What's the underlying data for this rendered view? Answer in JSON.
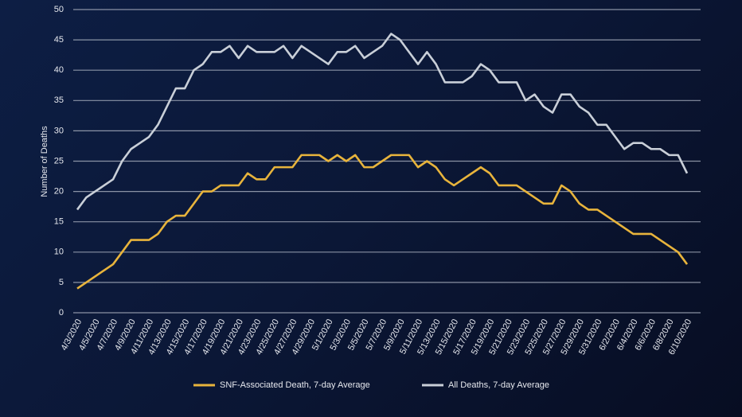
{
  "chart_data": {
    "type": "line",
    "y_label": "Number of Deaths",
    "categories": [
      "4/3/2020",
      null,
      "4/5/2020",
      null,
      "4/7/2020",
      null,
      "4/9/2020",
      null,
      "4/11/2020",
      null,
      "4/13/2020",
      null,
      "4/15/2020",
      null,
      "4/17/2020",
      null,
      "4/19/2020",
      null,
      "4/21/2020",
      null,
      "4/23/2020",
      null,
      "4/25/2020",
      null,
      "4/27/2020",
      null,
      "4/29/2020",
      null,
      "5/1/2020",
      null,
      "5/3/2020",
      null,
      "5/5/2020",
      null,
      "5/7/2020",
      null,
      "5/9/2020",
      null,
      "5/11/2020",
      null,
      "5/13/2020",
      null,
      "5/15/2020",
      null,
      "5/17/2020",
      null,
      "5/19/2020",
      null,
      "5/21/2020",
      null,
      "5/23/2020",
      null,
      "5/25/2020",
      null,
      "5/27/2020",
      null,
      "5/29/2020",
      null,
      "5/31/2020",
      null,
      "6/2/2020",
      null,
      "6/4/2020",
      null,
      "6/6/2020",
      null,
      "6/8/2020",
      null,
      "6/10/2020"
    ],
    "series": [
      {
        "name": "SNF-Associated Death, 7-day Average",
        "color": "#e8b43c",
        "values": [
          4,
          5,
          6,
          7,
          8,
          10,
          12,
          12,
          12,
          13,
          15,
          16,
          16,
          18,
          20,
          20,
          21,
          21,
          21,
          23,
          22,
          22,
          24,
          24,
          24,
          26,
          26,
          26,
          25,
          26,
          25,
          26,
          24,
          24,
          25,
          26,
          26,
          26,
          24,
          25,
          24,
          22,
          21,
          22,
          23,
          24,
          23,
          21,
          21,
          21,
          20,
          19,
          18,
          18,
          21,
          20,
          18,
          17,
          17,
          16,
          15,
          14,
          13,
          13,
          13,
          12,
          11,
          10,
          8
        ]
      },
      {
        "name": "All Deaths, 7-day Average",
        "color": "#c9cfd8",
        "values": [
          17,
          19,
          20,
          21,
          22,
          25,
          27,
          28,
          29,
          31,
          34,
          37,
          37,
          40,
          41,
          43,
          43,
          44,
          42,
          44,
          43,
          43,
          43,
          44,
          42,
          44,
          43,
          42,
          41,
          43,
          43,
          44,
          42,
          43,
          44,
          46,
          45,
          43,
          41,
          43,
          41,
          38,
          38,
          38,
          39,
          41,
          40,
          38,
          38,
          38,
          35,
          36,
          34,
          33,
          36,
          36,
          34,
          33,
          31,
          31,
          29,
          27,
          28,
          28,
          27,
          27,
          26,
          26,
          23
        ]
      }
    ],
    "ylim": [
      0,
      50
    ],
    "yticks": [
      0,
      5,
      10,
      15,
      20,
      25,
      30,
      35,
      40,
      45,
      50
    ],
    "grid": true,
    "legend": "bottom"
  }
}
